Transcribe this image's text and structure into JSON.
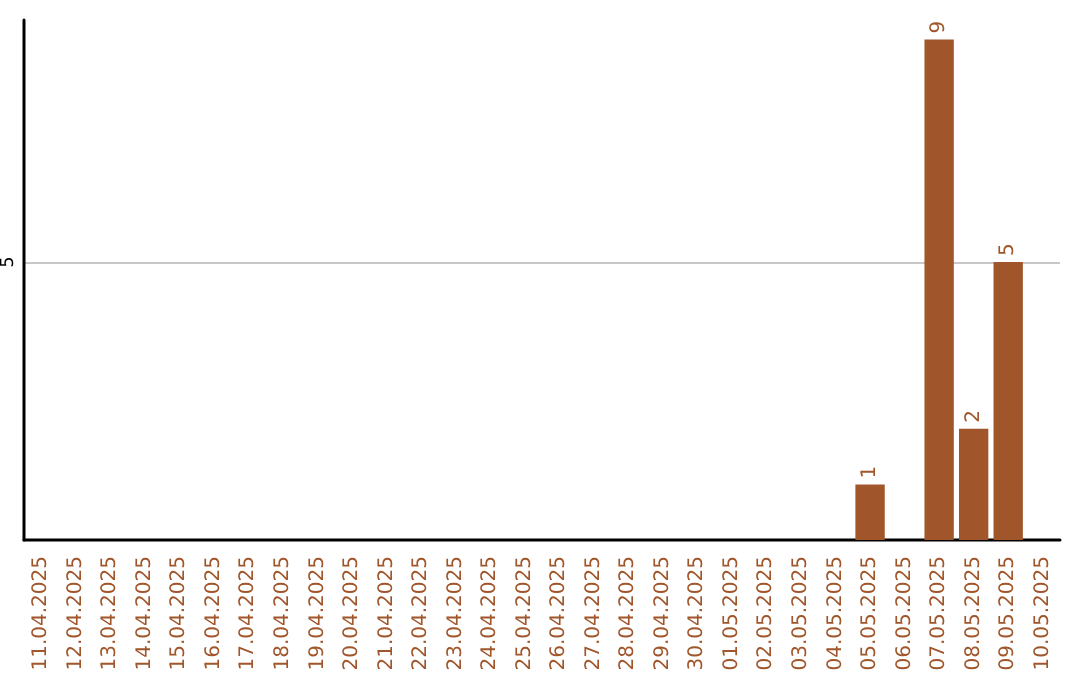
{
  "chart_data": {
    "type": "bar",
    "categories": [
      "11.04.2025",
      "12.04.2025",
      "13.04.2025",
      "14.04.2025",
      "15.04.2025",
      "16.04.2025",
      "17.04.2025",
      "18.04.2025",
      "19.04.2025",
      "20.04.2025",
      "21.04.2025",
      "22.04.2025",
      "23.04.2025",
      "24.04.2025",
      "25.04.2025",
      "26.04.2025",
      "27.04.2025",
      "28.04.2025",
      "29.04.2025",
      "30.04.2025",
      "01.05.2025",
      "02.05.2025",
      "03.05.2025",
      "04.05.2025",
      "05.05.2025",
      "06.05.2025",
      "07.05.2025",
      "08.05.2025",
      "09.05.2025",
      "10.05.2025"
    ],
    "values": [
      null,
      null,
      null,
      null,
      null,
      null,
      null,
      null,
      null,
      null,
      null,
      null,
      null,
      null,
      null,
      null,
      null,
      null,
      null,
      null,
      null,
      null,
      null,
      null,
      1,
      null,
      9,
      2,
      5,
      null
    ],
    "data_labels": true,
    "color": "#a0562a",
    "ylim": [
      0,
      9.35
    ],
    "yticks": [
      5
    ],
    "grid": "y"
  }
}
